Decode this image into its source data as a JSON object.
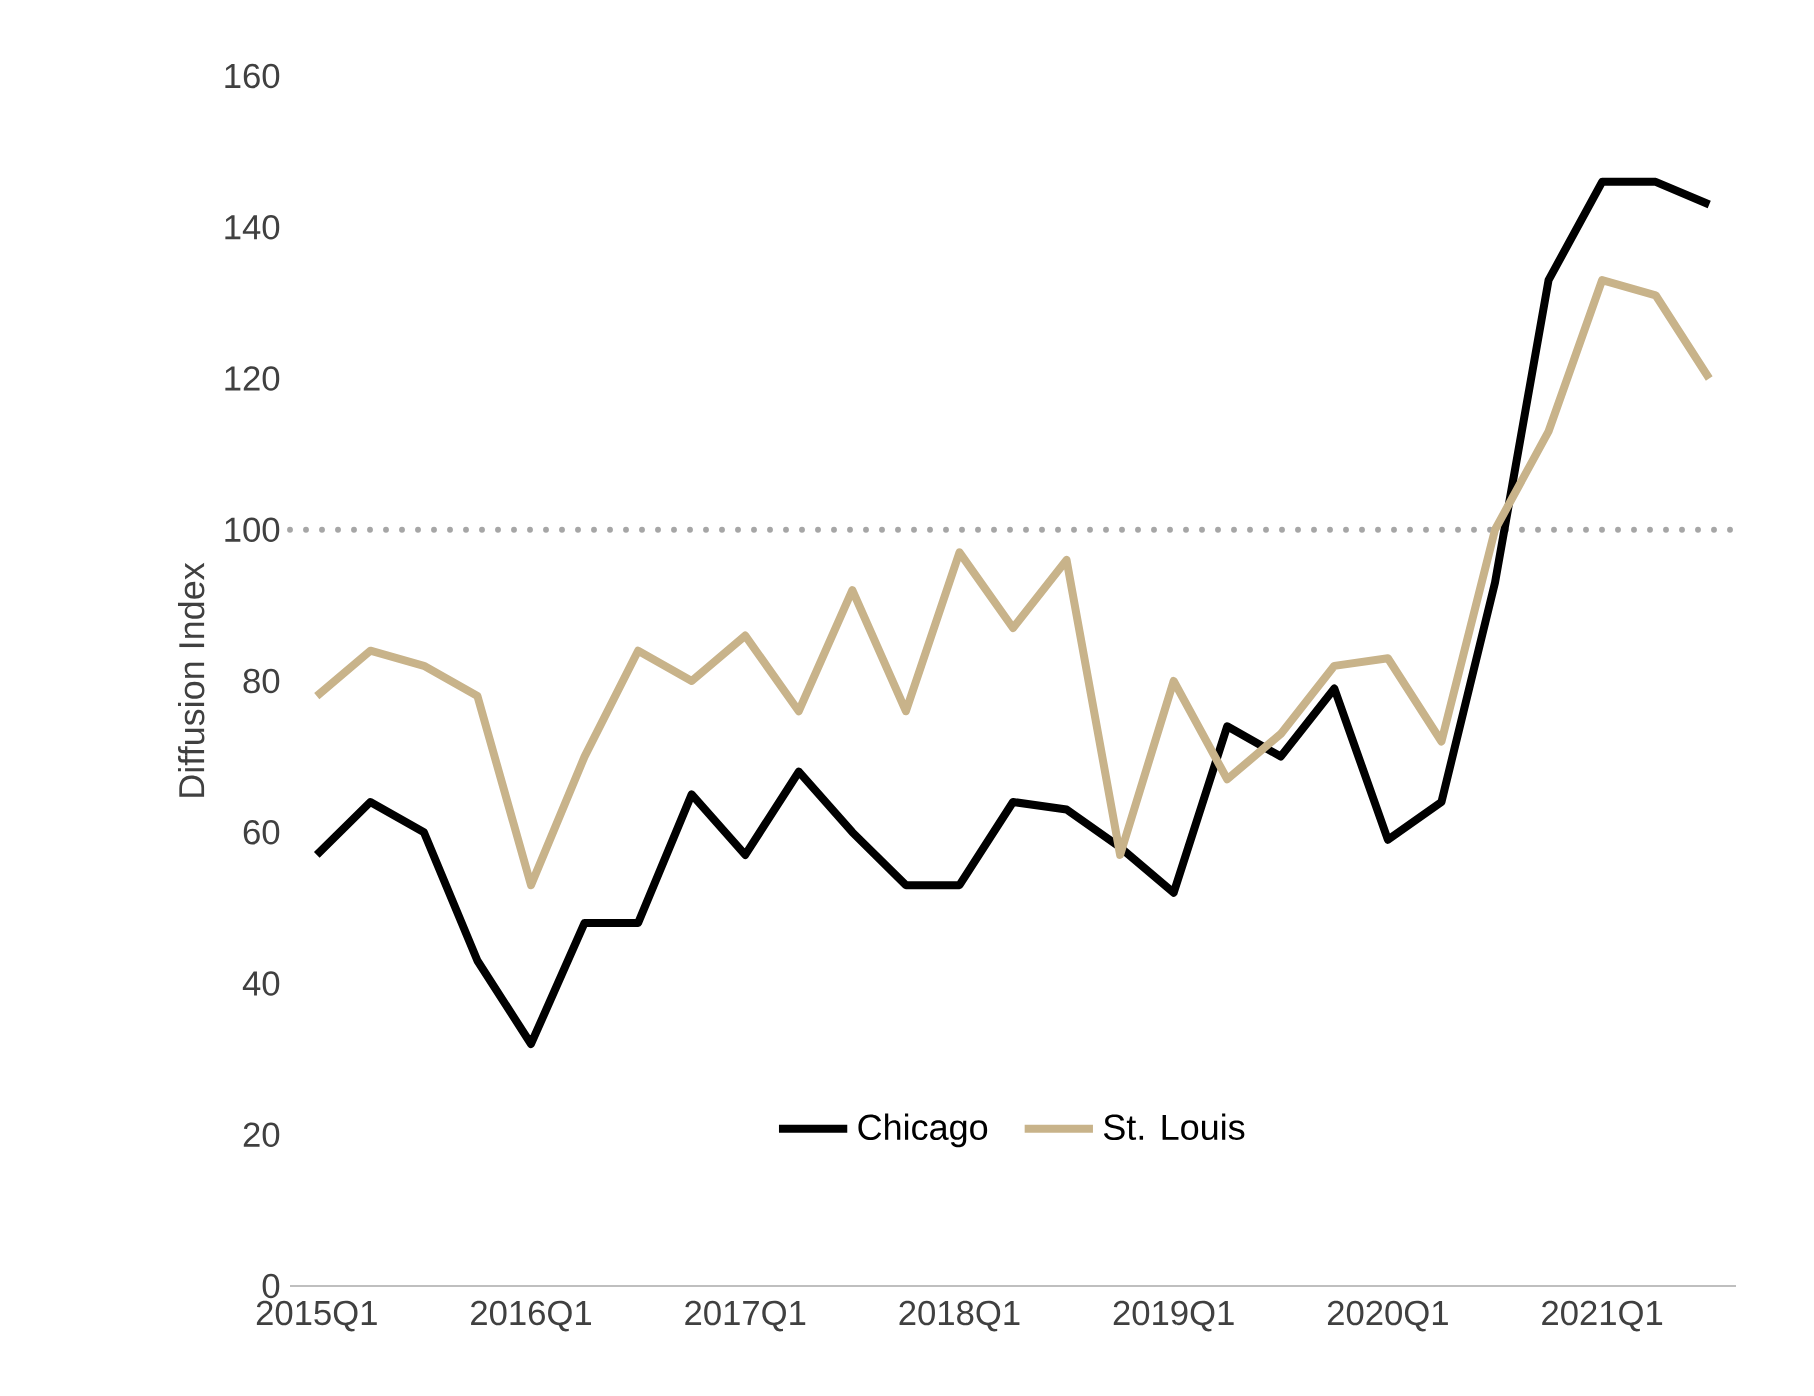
{
  "chart_data": {
    "type": "line",
    "ylabel": "Diffusion Index",
    "categories": [
      "2015Q1",
      null,
      null,
      null,
      "2016Q1",
      null,
      null,
      null,
      "2017Q1",
      null,
      null,
      null,
      "2018Q1",
      null,
      null,
      null,
      "2019Q1",
      null,
      null,
      null,
      "2020Q1",
      null,
      null,
      null,
      "2021Q1",
      null,
      null
    ],
    "series": [
      {
        "name": "Chicago",
        "color": "#000000",
        "values": [
          57,
          64,
          60,
          43,
          32,
          48,
          48,
          65,
          57,
          68,
          60,
          53,
          53,
          64,
          63,
          58,
          52,
          74,
          70,
          79,
          59,
          64,
          93,
          133,
          146,
          146,
          143
        ]
      },
      {
        "name": "St. Louis",
        "color": "#c8b38a",
        "values": [
          78,
          84,
          82,
          78,
          53,
          70,
          84,
          80,
          86,
          76,
          92,
          76,
          97,
          87,
          96,
          57,
          80,
          67,
          73,
          82,
          83,
          72,
          100,
          113,
          133,
          131,
          120
        ]
      }
    ],
    "ylim": [
      0,
      160
    ],
    "yticks": [
      0,
      20,
      40,
      60,
      80,
      100,
      120,
      140,
      160
    ],
    "ref_lines": [
      {
        "axis": "y",
        "value": 100,
        "color": "#a6a6a6",
        "line_style": "dotted"
      }
    ],
    "legend": "bottom"
  }
}
